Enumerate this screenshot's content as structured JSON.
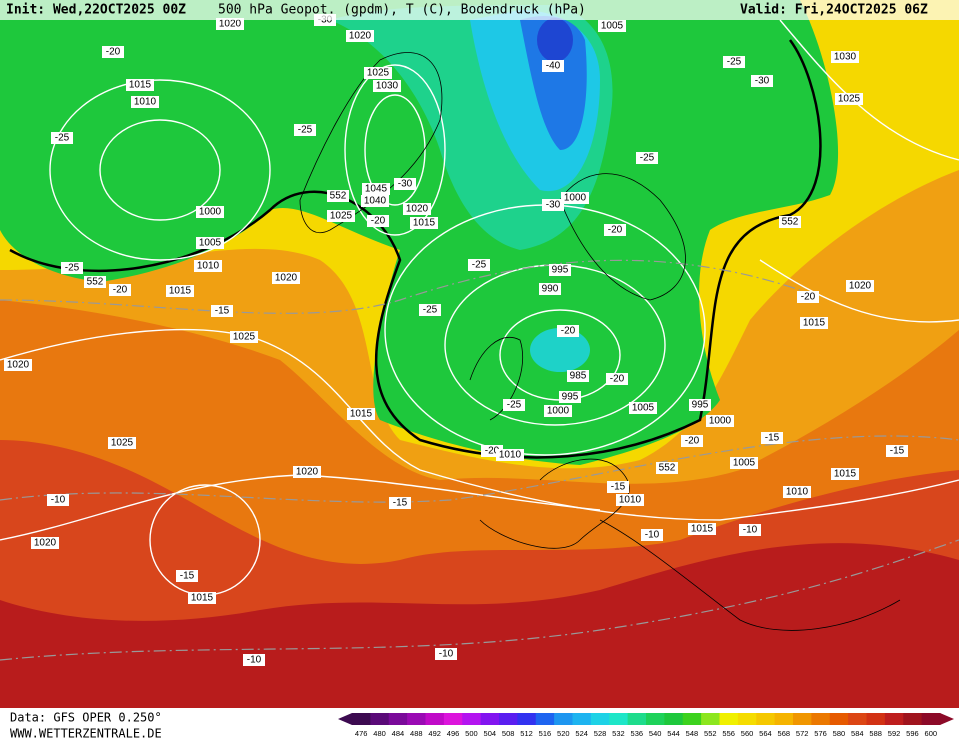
{
  "header": {
    "init": "Init: Wed,22OCT2025 00Z",
    "title": "500 hPa Geopot. (gpdm), T (C), Bodendruck (hPa)",
    "valid": "Valid: Fri,24OCT2025 06Z"
  },
  "footer": {
    "data": "Data: GFS OPER 0.250°",
    "site": "WWW.WETTERZENTRALE.DE"
  },
  "colorbar": {
    "values": [
      476,
      480,
      484,
      488,
      492,
      496,
      500,
      504,
      508,
      512,
      516,
      520,
      524,
      528,
      532,
      536,
      540,
      544,
      548,
      552,
      556,
      560,
      564,
      568,
      572,
      576,
      580,
      584,
      588,
      592,
      596,
      600
    ],
    "colors": [
      "#3c0a50",
      "#5a0a78",
      "#7a0a9a",
      "#9a0ab4",
      "#c00ac8",
      "#dc14dc",
      "#b414f0",
      "#8214f0",
      "#5a1ef0",
      "#3232f0",
      "#1e64f0",
      "#1e96f0",
      "#1eb4f0",
      "#1ed2e6",
      "#1ee6c8",
      "#1edc8c",
      "#1ed25a",
      "#1ec83c",
      "#3cd21e",
      "#8ce61e",
      "#f0f000",
      "#f5dc00",
      "#f5c800",
      "#f5b400",
      "#f09600",
      "#eb7800",
      "#e65a00",
      "#dc4614",
      "#d23214",
      "#be1e1e",
      "#a0141e",
      "#8c0a28"
    ]
  },
  "labels": [
    "1020",
    "-30",
    "1020",
    "1005",
    "-20",
    "-40",
    "-25",
    "1030",
    "1015",
    "1025",
    "1030",
    "-30",
    "1010",
    "1025",
    "-25",
    "-25",
    "-25",
    "552",
    "1045",
    "-30",
    "1040",
    "1000",
    "-30",
    "1000",
    "1025",
    "1020",
    "-20",
    "1015",
    "-20",
    "552",
    "1005",
    "1010",
    "-25",
    "-25",
    "995",
    "552",
    "-20",
    "1020",
    "990",
    "1015",
    "1020",
    "-20",
    "-15",
    "-25",
    "1015",
    "-20",
    "1025",
    "1020",
    "985",
    "-20",
    "995",
    "-25",
    "1000",
    "1005",
    "995",
    "1015",
    "1000",
    "-15",
    "-20",
    "1025",
    "-20",
    "1010",
    "-15",
    "1005",
    "1020",
    "552",
    "1015",
    "-15",
    "1010",
    "-10",
    "-15",
    "1010",
    "1015",
    "-10",
    "-10",
    "1020",
    "-15",
    "1015",
    "-10",
    "-10"
  ]
}
